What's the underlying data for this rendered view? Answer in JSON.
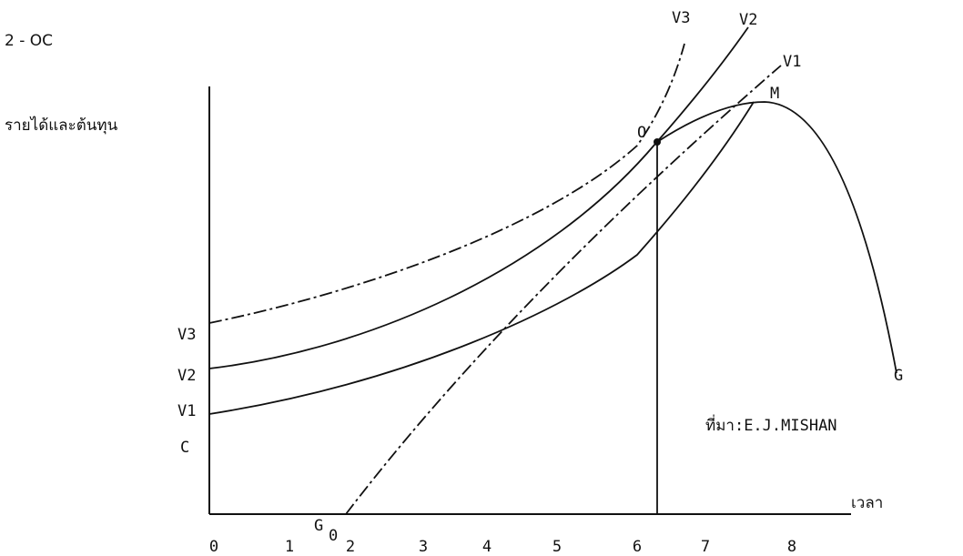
{
  "header": {
    "formula_main": "2 - OC"
  },
  "axes": {
    "y_label": "รายได้และต้นทุน",
    "x_label": "เวลา",
    "x_ticks": [
      "0",
      "1",
      "2",
      "3",
      "4",
      "5",
      "6",
      "7",
      "8"
    ],
    "y_marks": [
      "V3",
      "V2",
      "V1",
      "C"
    ]
  },
  "curves": {
    "v3": "V3",
    "v2": "V2",
    "v1": "V1",
    "peak": "M",
    "optimum": "O",
    "growth": "G",
    "growth_start": {
      "base": "G",
      "sub": "0"
    }
  },
  "source": "ที่มา:E.J.MISHAN"
}
